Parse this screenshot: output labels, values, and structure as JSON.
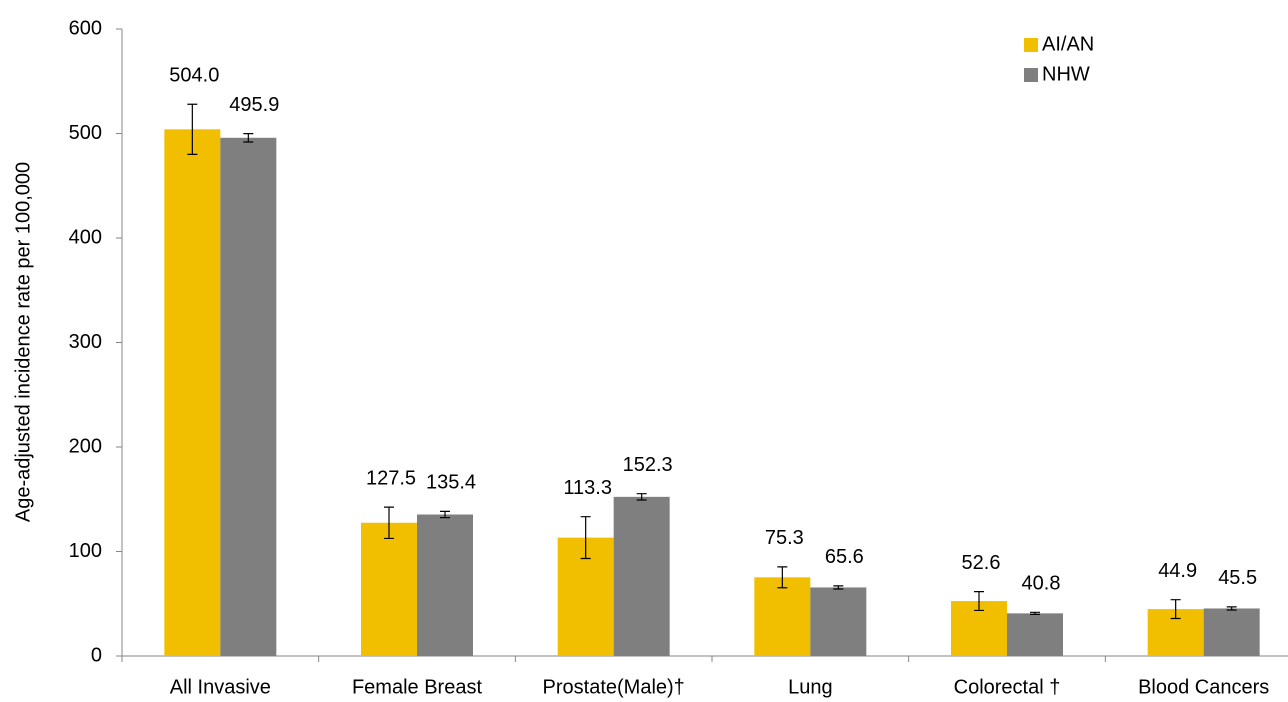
{
  "chart_data": {
    "type": "bar",
    "y_label": "Age-adjusted incidence rate per 100,000",
    "categories": [
      "All Invasive",
      "Female Breast",
      "Prostate(Male)†",
      "Lung",
      "Colorectal †",
      "Blood Cancers"
    ],
    "series": [
      {
        "name": "AI/AN",
        "color": "#f2bf00",
        "values": [
          504.0,
          127.5,
          113.3,
          75.3,
          52.6,
          44.9
        ],
        "value_labels": [
          "504.0",
          "127.5",
          "113.3",
          "75.3",
          "52.6",
          "44.9"
        ],
        "errors": [
          24,
          15,
          20,
          10,
          9,
          9
        ]
      },
      {
        "name": "NHW",
        "color": "#7f7f7f",
        "values": [
          495.9,
          135.4,
          152.3,
          65.6,
          40.8,
          45.5
        ],
        "value_labels": [
          "495.9",
          "135.4",
          "152.3",
          "65.6",
          "40.8",
          "45.5"
        ],
        "errors": [
          4,
          3,
          3,
          1.5,
          1,
          1.5
        ]
      }
    ],
    "ylim": [
      0,
      600
    ],
    "yticks": [
      0,
      100,
      200,
      300,
      400,
      500,
      600
    ],
    "legend": "top-right"
  }
}
